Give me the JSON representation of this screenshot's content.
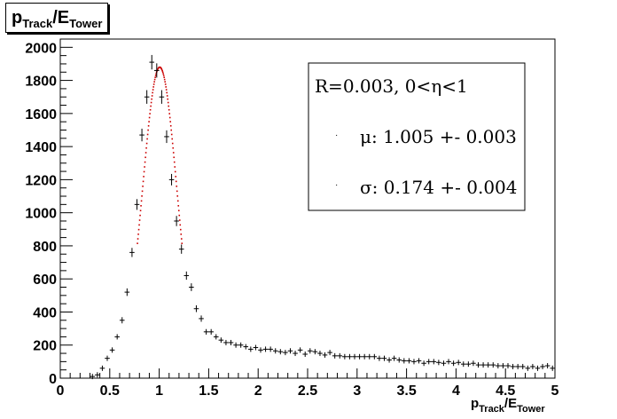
{
  "chart_data": {
    "type": "scatter",
    "title_main": "p",
    "title_sub1": "Track",
    "title_mid": "/E",
    "title_sub2": "Tower",
    "xlabel_main": "p",
    "xlabel_sub1": "Track",
    "xlabel_mid": "/E",
    "xlabel_sub2": "Tower",
    "ylabel": "",
    "xlim": [
      0,
      5
    ],
    "ylim": [
      0,
      2050
    ],
    "x_ticks": [
      0,
      0.5,
      1,
      1.5,
      2,
      2.5,
      3,
      3.5,
      4,
      4.5,
      5
    ],
    "x_tick_labels": [
      "0",
      "0.5",
      "1",
      "1.5",
      "2",
      "2.5",
      "3",
      "3.5",
      "4",
      "4.5",
      "5"
    ],
    "y_ticks": [
      0,
      200,
      400,
      600,
      800,
      1000,
      1200,
      1400,
      1600,
      1800,
      2000
    ],
    "y_tick_labels": [
      "0",
      "200",
      "400",
      "600",
      "800",
      "1000",
      "1200",
      "1400",
      "1600",
      "1800",
      "2000"
    ],
    "grid": false,
    "legend_position": "top-right",
    "legend": {
      "header": "R=0.003, 0<η<1",
      "mu": "μ: 1.005 +- 0.003",
      "sigma": "σ: 0.174 +- 0.004"
    },
    "series": [
      {
        "x": [
          0.325,
          0.375,
          0.425,
          0.475,
          0.525,
          0.575,
          0.625,
          0.675,
          0.725,
          0.775,
          0.825,
          0.875,
          0.925,
          0.975,
          1.025,
          1.075,
          1.125,
          1.175,
          1.225,
          1.275,
          1.325,
          1.375,
          1.425,
          1.475,
          1.525,
          1.575,
          1.625,
          1.675,
          1.725,
          1.775,
          1.825,
          1.875,
          1.925,
          1.975,
          2.025,
          2.075,
          2.125,
          2.175,
          2.225,
          2.275,
          2.325,
          2.375,
          2.425,
          2.475,
          2.525,
          2.575,
          2.625,
          2.675,
          2.725,
          2.775,
          2.825,
          2.875,
          2.925,
          2.975,
          3.025,
          3.075,
          3.125,
          3.175,
          3.225,
          3.275,
          3.325,
          3.375,
          3.425,
          3.475,
          3.525,
          3.575,
          3.625,
          3.675,
          3.725,
          3.775,
          3.825,
          3.875,
          3.925,
          3.975,
          4.025,
          4.075,
          4.125,
          4.175,
          4.225,
          4.275,
          4.325,
          4.375,
          4.425,
          4.475,
          4.525,
          4.575,
          4.625,
          4.675,
          4.725,
          4.775,
          4.825,
          4.875,
          4.925,
          4.975
        ],
        "y": [
          10,
          20,
          60,
          120,
          170,
          250,
          350,
          520,
          760,
          1050,
          1470,
          1700,
          1910,
          1860,
          1700,
          1460,
          1200,
          950,
          780,
          620,
          550,
          420,
          360,
          280,
          280,
          250,
          230,
          215,
          215,
          200,
          200,
          190,
          175,
          185,
          170,
          175,
          175,
          165,
          160,
          155,
          165,
          150,
          170,
          145,
          165,
          160,
          150,
          140,
          155,
          135,
          135,
          130,
          130,
          130,
          130,
          130,
          130,
          130,
          120,
          120,
          110,
          120,
          110,
          105,
          105,
          100,
          105,
          90,
          100,
          100,
          95,
          90,
          100,
          90,
          95,
          85,
          85,
          90,
          80,
          80,
          80,
          80,
          75,
          75,
          75,
          70,
          70,
          70,
          60,
          70,
          60,
          70,
          75,
          60
        ]
      }
    ],
    "fit": {
      "type": "gaussian",
      "mean": 1.005,
      "sigma": 0.174,
      "amplitude": 1880,
      "range": [
        0.78,
        1.23
      ],
      "color": "#cc0000"
    },
    "colors": {
      "axis": "#000000",
      "points": "#000000",
      "fit": "#cc0000"
    }
  }
}
